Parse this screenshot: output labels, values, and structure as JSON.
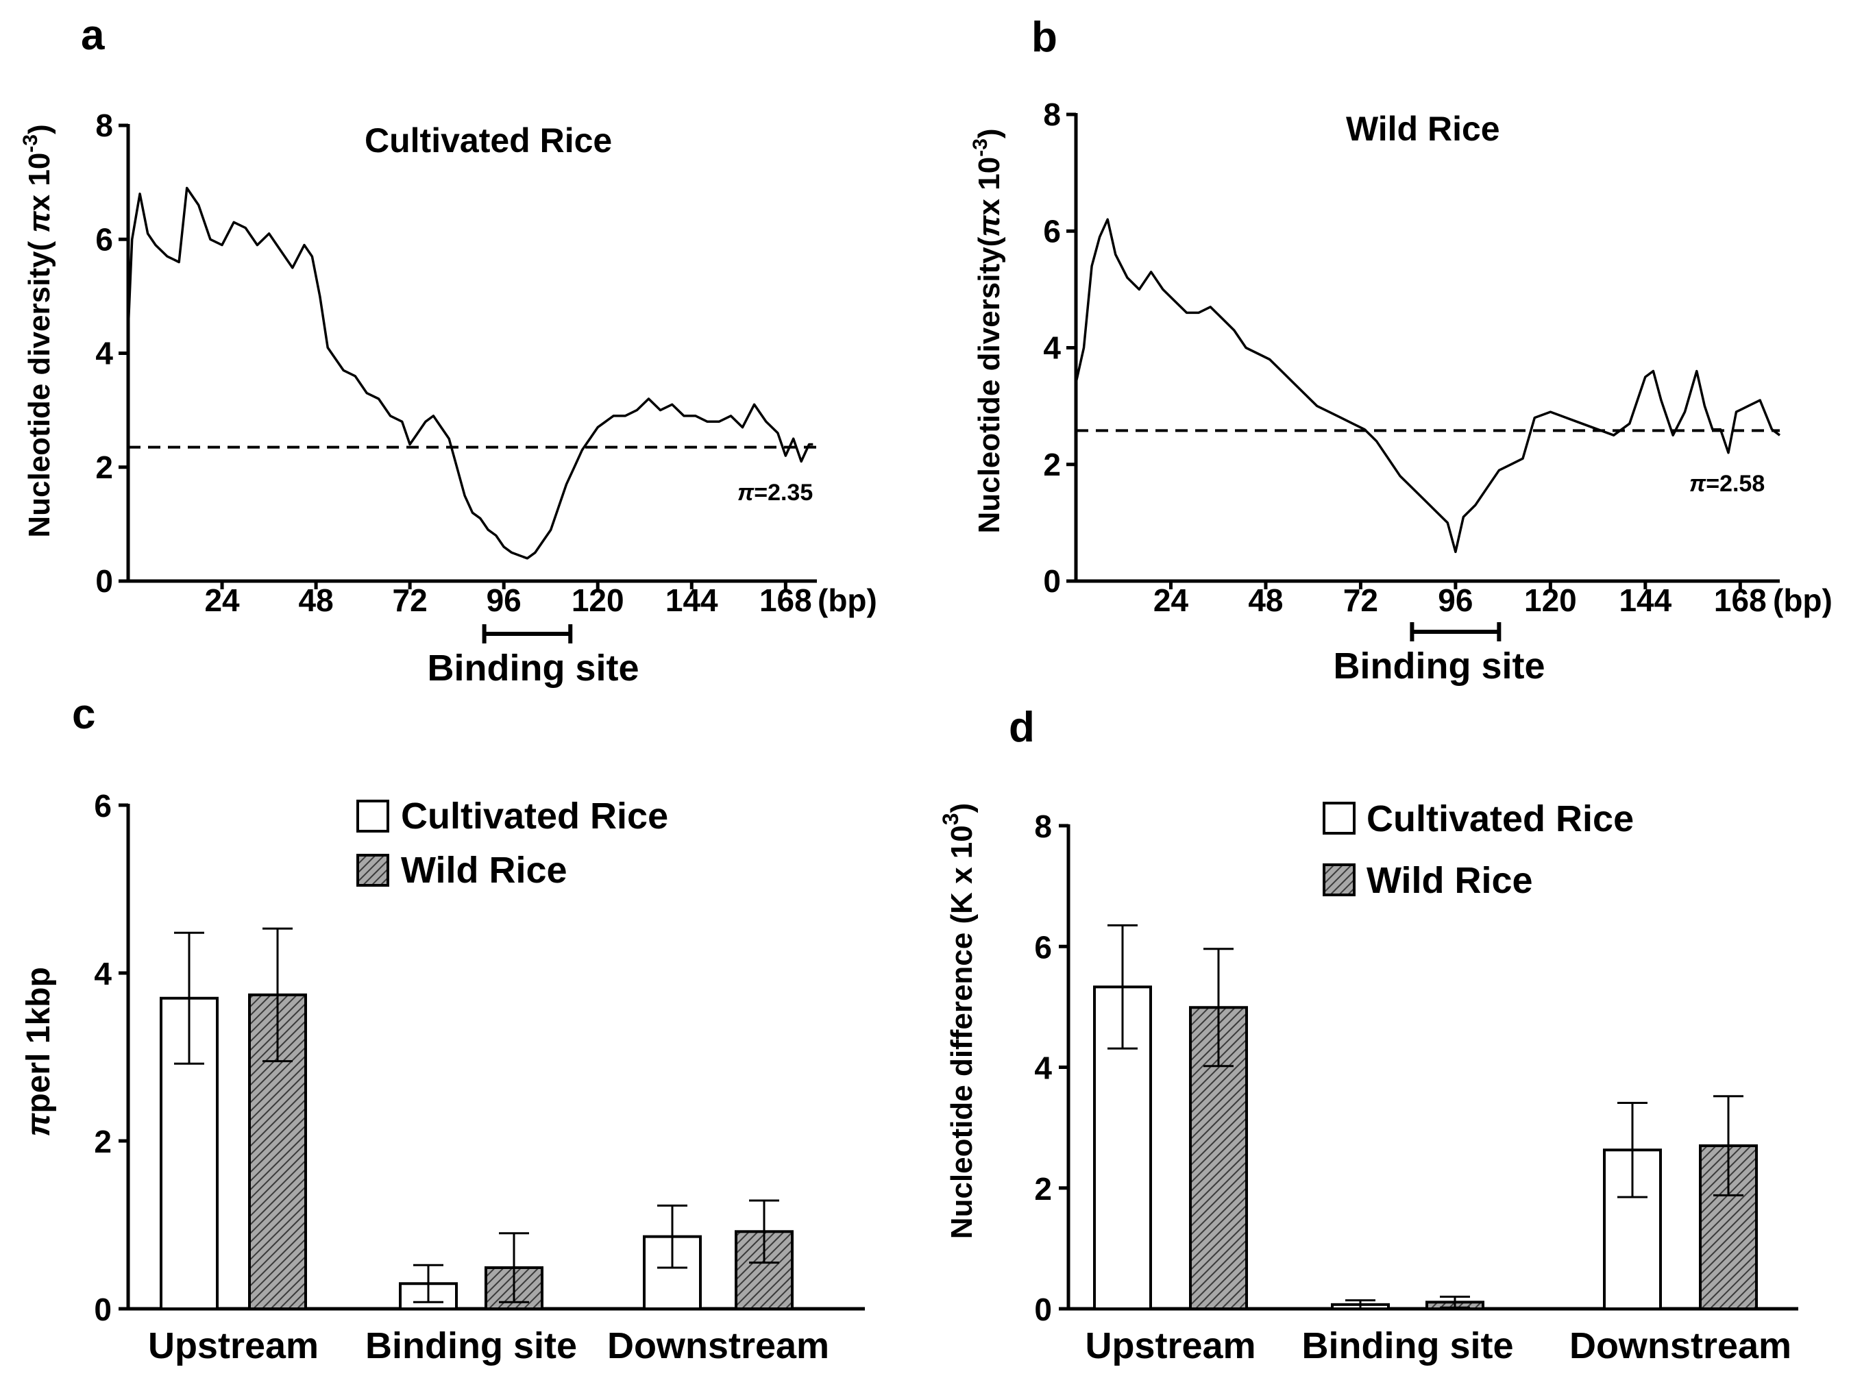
{
  "colors": {
    "ink": "#000000",
    "cultivated_fill": "#ffffff",
    "wild_fill": "#808080"
  },
  "panels": {
    "a": {
      "letter": "a",
      "title": "Cultivated Rice",
      "ylabel_prefix": "Nucleotide diversity( ",
      "ylabel_pi": "π",
      "ylabel_suffix": "x 10",
      "ylabel_exp": "-3",
      "ylabel_close": ")",
      "xunit": "(bp)",
      "pi_symbol": "π",
      "pi_value": "=2.35",
      "binding_label": "Binding site"
    },
    "b": {
      "letter": "b",
      "title": "Wild Rice",
      "ylabel_prefix": "Nucleotide diversity(",
      "ylabel_pi": "π",
      "ylabel_suffix": "x 10",
      "ylabel_exp": "-3",
      "ylabel_close": ")",
      "xunit": "(bp)",
      "pi_symbol": "π",
      "pi_value": "=2.58",
      "binding_label": "Binding site"
    },
    "c": {
      "letter": "c",
      "ylabel_pi": "π",
      "ylabel_rest": "perl  1kbp",
      "legend": [
        "Cultivated Rice",
        "Wild Rice"
      ]
    },
    "d": {
      "letter": "d",
      "ylabel": "Nucleotide difference (K x 10",
      "ylabel_exp": "3",
      "ylabel_close": ")",
      "legend": [
        "Cultivated Rice",
        "Wild Rice"
      ]
    }
  },
  "chart_data": [
    {
      "panel": "a",
      "type": "line",
      "title": "Cultivated Rice",
      "xlabel": "(bp)",
      "ylabel": "Nucleotide diversity(πx 10^-3)",
      "xlim": [
        0,
        176
      ],
      "ylim": [
        0,
        8
      ],
      "xticks": [
        24,
        48,
        72,
        96,
        120,
        144,
        168
      ],
      "yticks": [
        0,
        2,
        4,
        6,
        8
      ],
      "x": [
        0,
        1,
        3,
        5,
        7,
        10,
        13,
        15,
        18,
        21,
        24,
        27,
        30,
        33,
        36,
        39,
        42,
        45,
        47,
        49,
        51,
        53,
        55,
        58,
        61,
        64,
        67,
        70,
        72,
        74,
        76,
        78,
        80,
        82,
        84,
        86,
        88,
        90,
        92,
        94,
        96,
        98,
        100,
        102,
        104,
        106,
        108,
        110,
        112,
        114,
        116,
        118,
        120,
        122,
        124,
        127,
        130,
        133,
        136,
        139,
        142,
        145,
        148,
        151,
        154,
        157,
        160,
        163,
        166,
        168,
        170,
        172,
        174,
        175
      ],
      "values": [
        4.4,
        6.0,
        6.8,
        6.1,
        5.9,
        5.7,
        5.6,
        6.9,
        6.6,
        6.0,
        5.9,
        6.3,
        6.2,
        5.9,
        6.1,
        5.8,
        5.5,
        5.9,
        5.7,
        5.0,
        4.1,
        3.9,
        3.7,
        3.6,
        3.3,
        3.2,
        2.9,
        2.8,
        2.4,
        2.6,
        2.8,
        2.9,
        2.7,
        2.5,
        2.0,
        1.5,
        1.2,
        1.1,
        0.9,
        0.8,
        0.6,
        0.5,
        0.45,
        0.4,
        0.5,
        0.7,
        0.9,
        1.3,
        1.7,
        2.0,
        2.3,
        2.5,
        2.7,
        2.8,
        2.9,
        2.9,
        3.0,
        3.2,
        3.0,
        3.1,
        2.9,
        2.9,
        2.8,
        2.8,
        2.9,
        2.7,
        3.1,
        2.8,
        2.6,
        2.2,
        2.5,
        2.1,
        2.4,
        2.4
      ],
      "reference_line": 2.35,
      "reference_label": "π=2.35",
      "binding_site": {
        "start": 91,
        "end": 113,
        "label": "Binding site"
      }
    },
    {
      "panel": "b",
      "type": "line",
      "title": "Wild Rice",
      "xlabel": "(bp)",
      "ylabel": "Nucleotide diversity(πx 10^-3)",
      "xlim": [
        0,
        178
      ],
      "ylim": [
        0,
        8
      ],
      "xticks": [
        24,
        48,
        72,
        96,
        120,
        144,
        168
      ],
      "yticks": [
        0,
        2,
        4,
        6,
        8
      ],
      "x": [
        0,
        2,
        4,
        6,
        8,
        10,
        13,
        16,
        19,
        22,
        25,
        28,
        31,
        34,
        37,
        40,
        43,
        46,
        49,
        52,
        55,
        58,
        61,
        64,
        67,
        70,
        73,
        76,
        79,
        82,
        85,
        88,
        91,
        94,
        96,
        98,
        101,
        104,
        107,
        110,
        113,
        116,
        120,
        124,
        128,
        132,
        136,
        140,
        144,
        146,
        148,
        151,
        154,
        157,
        159,
        161,
        163,
        165,
        167,
        170,
        173,
        176,
        178
      ],
      "values": [
        3.4,
        4.0,
        5.4,
        5.9,
        6.2,
        5.6,
        5.2,
        5.0,
        5.3,
        5.0,
        4.8,
        4.6,
        4.6,
        4.7,
        4.5,
        4.3,
        4.0,
        3.9,
        3.8,
        3.6,
        3.4,
        3.2,
        3.0,
        2.9,
        2.8,
        2.7,
        2.6,
        2.4,
        2.1,
        1.8,
        1.6,
        1.4,
        1.2,
        1.0,
        0.5,
        1.1,
        1.3,
        1.6,
        1.9,
        2.0,
        2.1,
        2.8,
        2.9,
        2.8,
        2.7,
        2.6,
        2.5,
        2.7,
        3.5,
        3.6,
        3.1,
        2.5,
        2.9,
        3.6,
        3.0,
        2.6,
        2.6,
        2.2,
        2.9,
        3.0,
        3.1,
        2.6,
        2.5
      ],
      "reference_line": 2.58,
      "reference_label": "π=2.58",
      "binding_site": {
        "start": 85,
        "end": 107,
        "label": "Binding site"
      }
    },
    {
      "panel": "c",
      "type": "bar",
      "ylabel": "πperl  1kbp",
      "ylim": [
        0,
        6
      ],
      "yticks": [
        0,
        2,
        4,
        6
      ],
      "categories": [
        "Upstream",
        "Binding site",
        "Downstream"
      ],
      "series": [
        {
          "name": "Cultivated Rice",
          "values": [
            3.7,
            0.3,
            0.86
          ],
          "errors": [
            0.78,
            0.22,
            0.37
          ]
        },
        {
          "name": "Wild Rice",
          "values": [
            3.74,
            0.49,
            0.92
          ],
          "errors": [
            0.79,
            0.41,
            0.37
          ]
        }
      ],
      "legend": "top-right"
    },
    {
      "panel": "d",
      "type": "bar",
      "ylabel": "Nucleotide difference (K x 10^3)",
      "ylim": [
        0,
        8
      ],
      "yticks": [
        0,
        2,
        4,
        6,
        8
      ],
      "categories": [
        "Upstream",
        "Binding site",
        "Downstream"
      ],
      "series": [
        {
          "name": "Cultivated Rice",
          "values": [
            5.33,
            0.07,
            2.63
          ],
          "errors": [
            1.02,
            0.07,
            0.78
          ]
        },
        {
          "name": "Wild Rice",
          "values": [
            4.99,
            0.11,
            2.7
          ],
          "errors": [
            0.97,
            0.09,
            0.82
          ]
        }
      ],
      "legend": "top-right"
    }
  ]
}
